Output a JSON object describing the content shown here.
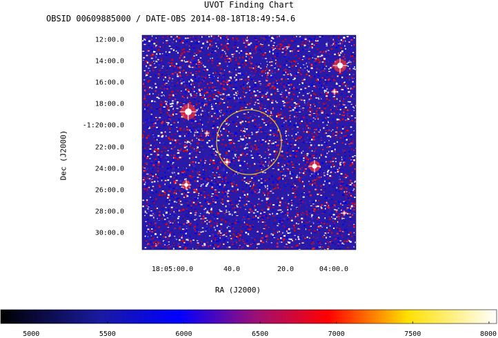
{
  "chart_data": {
    "type": "heatmap",
    "title": "UVOT Finding Chart",
    "subtitle": "OBSID 00609885000 / DATE-OBS 2014-08-18T18:49:54.6",
    "xlabel": "RA (J2000)",
    "ylabel": "Dec (J2000)",
    "x_ticks": [
      "18:05:00.0",
      "40.0",
      "20.0",
      "04:00.0"
    ],
    "y_ticks": [
      "12:00.0",
      "14:00.0",
      "16:00.0",
      "18:00.0",
      "-1:20:00.0",
      "22:00.0",
      "24:00.0",
      "26:00.0",
      "28:00.0",
      "30:00.0"
    ],
    "colorbar": {
      "ticks": [
        5000,
        5500,
        6000,
        6500,
        7000,
        7500,
        8000
      ],
      "range": [
        4800,
        8050
      ],
      "colors": [
        "#000000",
        "#0000ff",
        "#ff0000",
        "#ffff00",
        "#ffffff"
      ]
    },
    "circle_color": "#e8c020"
  }
}
